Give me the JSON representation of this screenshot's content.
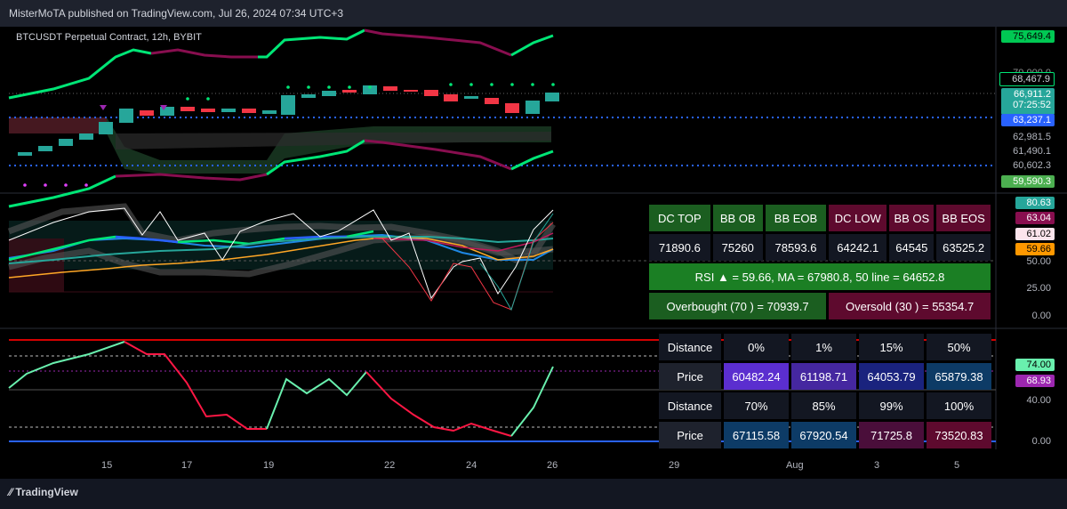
{
  "header": {
    "published": "MisterMoTA published on TradingView.com, Jul 26, 2024 07:34 UTC+3"
  },
  "symbol": {
    "title": "BTCUSDT Perpetual Contract, 12h, BYBIT"
  },
  "price_axis": {
    "top_tag": "75,649.4",
    "tag2": "68,467.9",
    "hidden_label": "70,000.0",
    "tag3": "66,911.2",
    "countdown": "07:25:52",
    "tag4": "63,237.1",
    "lbl1": "62,981.5",
    "lbl2": "61,490.1",
    "lbl3": "60,602.3",
    "tag5": "59,590.3"
  },
  "rsi_axis": {
    "t1": "80.63",
    "t2": "63.04",
    "t3": "61.02",
    "t4": "59.66",
    "l50": "50.00",
    "l25": "25.00",
    "l0": "0.00"
  },
  "osc_axis": {
    "t1": "74.00",
    "t2": "68.93",
    "l40": "40.00",
    "l0": "0.00"
  },
  "x_axis": [
    "15",
    "17",
    "19",
    "22",
    "24",
    "26",
    "29",
    "Aug",
    "3",
    "5"
  ],
  "table_dc": {
    "headers": [
      "DC TOP",
      "BB OB",
      "BB EOB",
      "DC LOW",
      "BB OS",
      "BB EOS"
    ],
    "values": [
      "71890.6",
      "75260",
      "78593.6",
      "64242.1",
      "64545",
      "63525.2"
    ],
    "rsi_line": "RSI ▲ = 59.66, MA = 67980.8, 50 line = 64652.8",
    "overbought": "Overbought (70 ) = 70939.7",
    "oversold": "Oversold (30 ) = 55354.7"
  },
  "table_dist": {
    "row1_label": "Distance",
    "row1": [
      "0%",
      "1%",
      "15%",
      "50%"
    ],
    "row2_label": "Price",
    "row2": [
      "60482.24",
      "61198.71",
      "64053.79",
      "65879.38"
    ],
    "row3_label": "Distance",
    "row3": [
      "70%",
      "85%",
      "99%",
      "100%"
    ],
    "row4_label": "Price",
    "row4": [
      "67115.58",
      "67920.54",
      "71725.8",
      "73520.83"
    ]
  },
  "footer": {
    "brand": "TradingView"
  },
  "colors": {
    "green": "#00e676",
    "maroon": "#880e4f",
    "blue": "#2962ff",
    "red": "#f23645",
    "teal": "#26a69a"
  }
}
